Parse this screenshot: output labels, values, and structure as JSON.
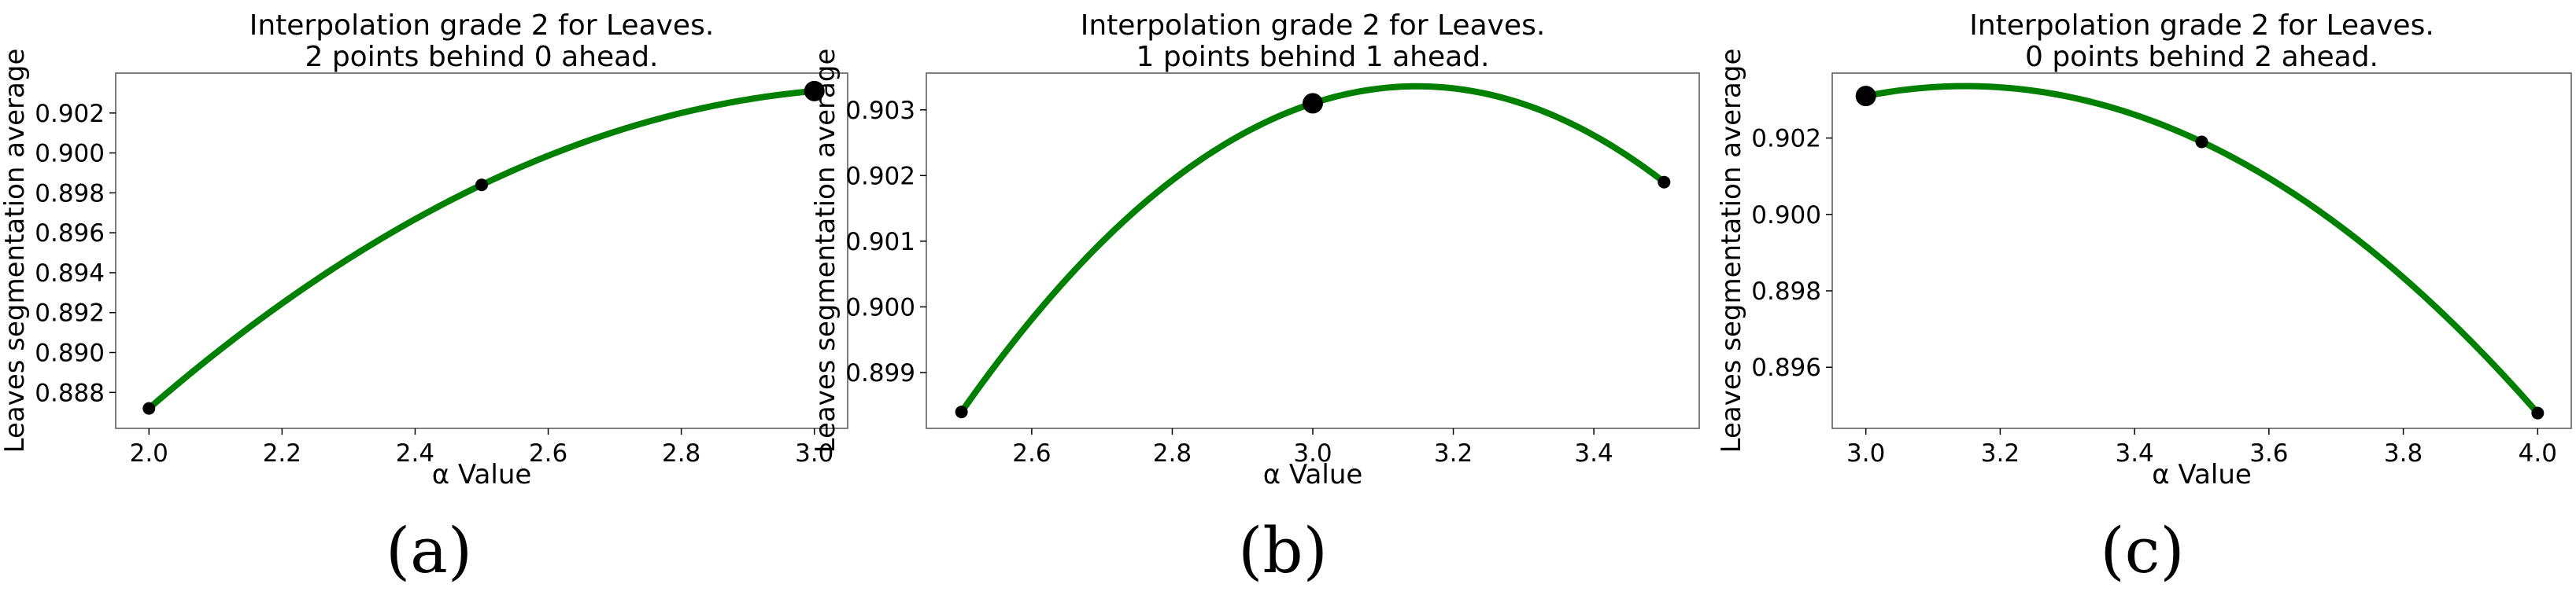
{
  "chart_data": [
    {
      "type": "line",
      "title": "Interpolation grade 2 for Leaves.",
      "subtitle": "2 points behind 0 ahead.",
      "xlabel": "α Value",
      "ylabel": "Leaves segmentation average",
      "panel_label": "(a)",
      "xlim": [
        1.95,
        3.05
      ],
      "ylim": [
        0.8862,
        0.904
      ],
      "xticks": [
        2.0,
        2.2,
        2.4,
        2.6,
        2.8,
        3.0
      ],
      "xtick_labels": [
        "2.0",
        "2.2",
        "2.4",
        "2.6",
        "2.8",
        "3.0"
      ],
      "yticks": [
        0.888,
        0.89,
        0.892,
        0.894,
        0.896,
        0.898,
        0.9,
        0.902
      ],
      "ytick_labels": [
        "0.888",
        "0.890",
        "0.892",
        "0.894",
        "0.896",
        "0.898",
        "0.900",
        "0.902"
      ],
      "points": [
        {
          "x": 2.0,
          "y": 0.8872,
          "highlight": false
        },
        {
          "x": 2.5,
          "y": 0.8984,
          "highlight": false
        },
        {
          "x": 3.0,
          "y": 0.9031,
          "highlight": true
        }
      ],
      "curve_range": [
        2.0,
        3.0
      ],
      "grid": false
    },
    {
      "type": "line",
      "title": "Interpolation grade 2 for Leaves.",
      "subtitle": "1 points behind 1 ahead.",
      "xlabel": "α Value",
      "ylabel": "Leaves segmentation average",
      "panel_label": "(b)",
      "xlim": [
        2.45,
        3.55
      ],
      "ylim": [
        0.89815,
        0.90356
      ],
      "xticks": [
        2.6,
        2.8,
        3.0,
        3.2,
        3.4
      ],
      "xtick_labels": [
        "2.6",
        "2.8",
        "3.0",
        "3.2",
        "3.4"
      ],
      "yticks": [
        0.899,
        0.9,
        0.901,
        0.902,
        0.903
      ],
      "ytick_labels": [
        "0.899",
        "0.900",
        "0.901",
        "0.902",
        "0.903"
      ],
      "points": [
        {
          "x": 2.5,
          "y": 0.8984,
          "highlight": false
        },
        {
          "x": 3.0,
          "y": 0.9031,
          "highlight": true
        },
        {
          "x": 3.5,
          "y": 0.9019,
          "highlight": false
        }
      ],
      "curve_range": [
        2.5,
        3.5
      ],
      "grid": false
    },
    {
      "type": "line",
      "title": "Interpolation grade 2 for Leaves.",
      "subtitle": "0 points behind 2 ahead.",
      "xlabel": "α Value",
      "ylabel": "Leaves segmentation average",
      "panel_label": "(c)",
      "xlim": [
        2.95,
        4.05
      ],
      "ylim": [
        0.8944,
        0.9037
      ],
      "xticks": [
        3.0,
        3.2,
        3.4,
        3.6,
        3.8,
        4.0
      ],
      "xtick_labels": [
        "3.0",
        "3.2",
        "3.4",
        "3.6",
        "3.8",
        "4.0"
      ],
      "yticks": [
        0.896,
        0.898,
        0.9,
        0.902
      ],
      "ytick_labels": [
        "0.896",
        "0.898",
        "0.900",
        "0.902"
      ],
      "points": [
        {
          "x": 3.0,
          "y": 0.9031,
          "highlight": true
        },
        {
          "x": 3.5,
          "y": 0.9019,
          "highlight": false
        },
        {
          "x": 4.0,
          "y": 0.8948,
          "highlight": false
        }
      ],
      "curve_range": [
        3.0,
        4.0
      ],
      "grid": false
    }
  ],
  "colors": {
    "curve": "#008000",
    "marker": "#000000",
    "axes": "#555555"
  }
}
